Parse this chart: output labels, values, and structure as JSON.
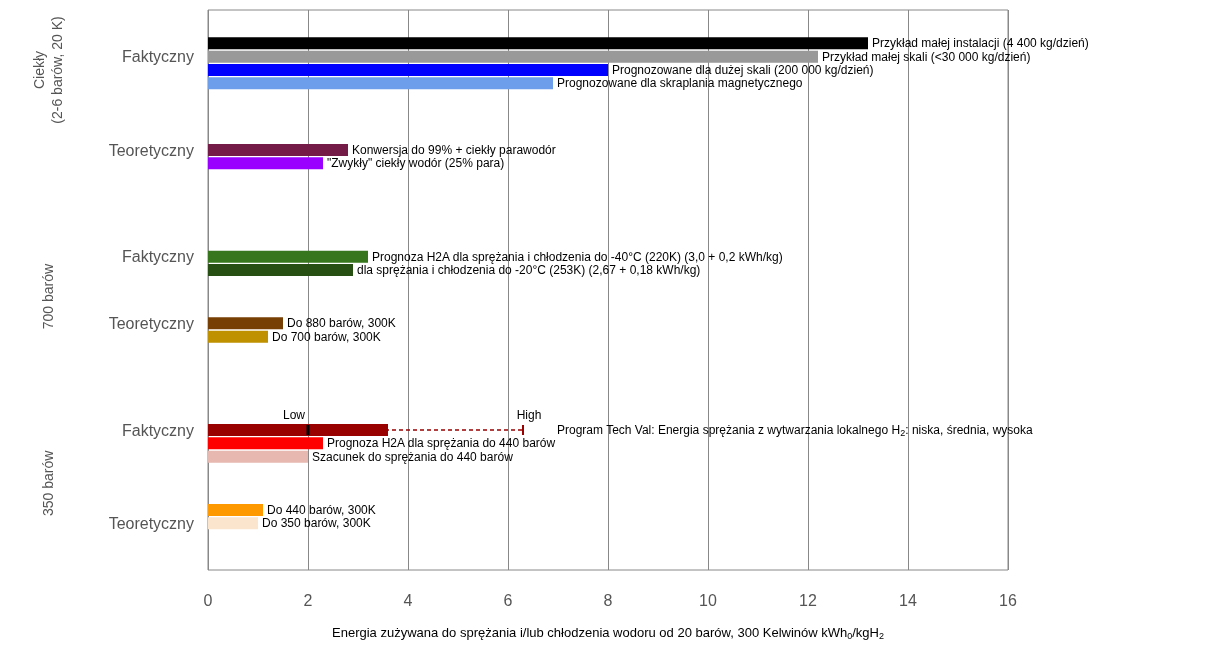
{
  "chart_data": {
    "type": "bar",
    "orientation": "horizontal",
    "xlabel": "Energia zużywana do sprężania i/lub chłodzenia wodoru od 20 barów, 300 Kelwinów kWh$_{0}$/kgH$_{2}$",
    "categories": [
      null,
      null,
      null,
      "Faktyczny",
      null,
      null,
      null,
      null,
      null,
      null,
      "Teoretyczny",
      null,
      null,
      null,
      null,
      null,
      null,
      null,
      "Faktyczny",
      null,
      null,
      null,
      null,
      "Teoretyczny",
      null,
      null,
      null,
      null,
      null,
      null,
      null,
      "Faktyczny",
      null,
      null,
      null,
      null,
      null,
      null,
      "Teoretyczny",
      null,
      null,
      null
    ],
    "xlim": [
      0,
      16
    ],
    "xticks": [
      0,
      2,
      4,
      6,
      8,
      10,
      12,
      14,
      16
    ],
    "grid": "x",
    "series": [
      {
        "name": "Przykład małej instalacji (4 400 kg/dzień)",
        "color": "#000000",
        "values": [
          null,
          null,
          13.2,
          null,
          null,
          null,
          null,
          null,
          null,
          null,
          null,
          null,
          null,
          null,
          null,
          null,
          null,
          null,
          null,
          null,
          null,
          null,
          null,
          null,
          null,
          null,
          null,
          null,
          null,
          null,
          null,
          null,
          null,
          null,
          null,
          null,
          null,
          null,
          null,
          null,
          null,
          null
        ]
      },
      {
        "name": "Przykład małej skali (<30 000 kg/dzień)",
        "color": "#999999",
        "values": [
          null,
          null,
          null,
          12.2,
          null,
          null,
          null,
          null,
          null,
          null,
          null,
          null,
          null,
          null,
          null,
          null,
          null,
          null,
          null,
          null,
          null,
          null,
          null,
          null,
          null,
          null,
          null,
          null,
          null,
          null,
          null,
          null,
          null,
          null,
          null,
          null,
          null,
          null,
          null,
          null,
          null,
          null
        ]
      },
      {
        "name": "Prognozowane dla dużej skali (200 000 kg/dzień)",
        "color": "#0000ff",
        "values": [
          null,
          null,
          null,
          null,
          8.0,
          null,
          null,
          null,
          null,
          null,
          null,
          null,
          null,
          null,
          null,
          null,
          null,
          null,
          null,
          null,
          null,
          null,
          null,
          null,
          null,
          null,
          null,
          null,
          null,
          null,
          null,
          null,
          null,
          null,
          null,
          null,
          null,
          null,
          null,
          null,
          null,
          null
        ]
      },
      {
        "name": "Prognozowane dla skraplania magnetycznego",
        "color": "#6d9eeb",
        "values": [
          null,
          null,
          null,
          null,
          null,
          6.9,
          null,
          null,
          null,
          null,
          null,
          null,
          null,
          null,
          null,
          null,
          null,
          null,
          null,
          null,
          null,
          null,
          null,
          null,
          null,
          null,
          null,
          null,
          null,
          null,
          null,
          null,
          null,
          null,
          null,
          null,
          null,
          null,
          null,
          null,
          null,
          null
        ]
      },
      {
        "name": "Konwersja do 99% + ciekły parawodór",
        "color": "#741b47",
        "values": [
          null,
          null,
          null,
          null,
          null,
          null,
          null,
          null,
          null,
          null,
          2.8,
          null,
          null,
          null,
          null,
          null,
          null,
          null,
          null,
          null,
          null,
          null,
          null,
          null,
          null,
          null,
          null,
          null,
          null,
          null,
          null,
          null,
          null,
          null,
          null,
          null,
          null,
          null,
          null,
          null,
          null,
          null
        ]
      },
      {
        "name": "\"Zwykły\" ciekły wodór (25% para)",
        "color": "#9900ff",
        "values": [
          null,
          null,
          null,
          null,
          null,
          null,
          null,
          null,
          null,
          null,
          null,
          2.3,
          null,
          null,
          null,
          null,
          null,
          null,
          null,
          null,
          null,
          null,
          null,
          null,
          null,
          null,
          null,
          null,
          null,
          null,
          null,
          null,
          null,
          null,
          null,
          null,
          null,
          null,
          null,
          null,
          null,
          null
        ]
      },
      {
        "name": "Prognoza H2A dla sprężania i chłodzenia do -40°C (220K) (3,0 + 0,2 kWh/kg)",
        "color": "#38761d",
        "values": [
          null,
          null,
          null,
          null,
          null,
          null,
          null,
          null,
          null,
          null,
          null,
          null,
          null,
          null,
          null,
          null,
          null,
          null,
          3.2,
          null,
          null,
          null,
          null,
          null,
          null,
          null,
          null,
          null,
          null,
          null,
          null,
          null,
          null,
          null,
          null,
          null,
          null,
          null,
          null,
          null,
          null,
          null
        ]
      },
      {
        "name": "dla sprężania i chłodzenia do -20°C (253K) (2,67 + 0,18 kWh/kg)",
        "color": "#274e13",
        "values": [
          null,
          null,
          null,
          null,
          null,
          null,
          null,
          null,
          null,
          null,
          null,
          null,
          null,
          null,
          null,
          null,
          null,
          null,
          null,
          2.9,
          null,
          null,
          null,
          null,
          null,
          null,
          null,
          null,
          null,
          null,
          null,
          null,
          null,
          null,
          null,
          null,
          null,
          null,
          null,
          null,
          null,
          null
        ]
      },
      {
        "name": "Do 880 barów, 300K",
        "color": "#783f04",
        "values": [
          null,
          null,
          null,
          null,
          null,
          null,
          null,
          null,
          null,
          null,
          null,
          null,
          null,
          null,
          null,
          null,
          null,
          null,
          null,
          null,
          null,
          null,
          null,
          1.5,
          null,
          null,
          null,
          null,
          null,
          null,
          null,
          null,
          null,
          null,
          null,
          null,
          null,
          null,
          null,
          null,
          null,
          null
        ]
      },
      {
        "name": "Do 700 barów, 300K",
        "color": "#bf9000",
        "values": [
          null,
          null,
          null,
          null,
          null,
          null,
          null,
          null,
          null,
          null,
          null,
          null,
          null,
          null,
          null,
          null,
          null,
          null,
          null,
          null,
          null,
          null,
          null,
          null,
          1.2,
          null,
          null,
          null,
          null,
          null,
          null,
          null,
          null,
          null,
          null,
          null,
          null,
          null,
          null,
          null,
          null,
          null
        ]
      },
      {
        "name": "Program Tech Val: Energia sprężania z wytwarzania lokalnego H$_{2}$: niska, średnia, wysoka",
        "color": "#990000",
        "values": [
          null,
          null,
          null,
          null,
          null,
          null,
          null,
          null,
          null,
          null,
          null,
          null,
          null,
          null,
          null,
          null,
          null,
          null,
          null,
          null,
          null,
          null,
          null,
          null,
          null,
          null,
          null,
          null,
          null,
          null,
          null,
          3.6,
          null,
          null,
          null,
          null,
          null,
          null,
          null,
          null,
          null,
          null
        ],
        "errors": [
          null,
          null,
          null,
          null,
          null,
          null,
          null,
          null,
          null,
          null,
          null,
          null,
          null,
          null,
          null,
          null,
          null,
          null,
          null,
          null,
          null,
          null,
          null,
          null,
          null,
          null,
          null,
          null,
          null,
          null,
          null,
          [
            2.0,
            6.3
          ],
          null,
          null,
          null,
          null,
          null,
          null,
          null,
          null,
          null,
          null
        ]
      },
      {
        "name": "Prognoza H2A dla sprężania do 440 barów",
        "color": "#ff0000",
        "values": [
          null,
          null,
          null,
          null,
          null,
          null,
          null,
          null,
          null,
          null,
          null,
          null,
          null,
          null,
          null,
          null,
          null,
          null,
          null,
          null,
          null,
          null,
          null,
          null,
          null,
          null,
          null,
          null,
          null,
          null,
          null,
          null,
          2.3,
          null,
          null,
          null,
          null,
          null,
          null,
          null,
          null,
          null
        ]
      },
      {
        "name": "Szacunek do sprężania do 440 barów",
        "color": "#e6b8af",
        "values": [
          null,
          null,
          null,
          null,
          null,
          null,
          null,
          null,
          null,
          null,
          null,
          null,
          null,
          null,
          null,
          null,
          null,
          null,
          null,
          null,
          null,
          null,
          null,
          null,
          null,
          null,
          null,
          null,
          null,
          null,
          null,
          null,
          null,
          2.0,
          null,
          null,
          null,
          null,
          null,
          null,
          null,
          null
        ]
      },
      {
        "name": "Do 440 barów, 300K",
        "color": "#ff9900",
        "values": [
          null,
          null,
          null,
          null,
          null,
          null,
          null,
          null,
          null,
          null,
          null,
          null,
          null,
          null,
          null,
          null,
          null,
          null,
          null,
          null,
          null,
          null,
          null,
          null,
          null,
          null,
          null,
          null,
          null,
          null,
          null,
          null,
          null,
          null,
          null,
          null,
          null,
          1.1,
          null,
          null,
          null,
          null
        ]
      },
      {
        "name": "Do 350 barów, 300K",
        "color": "#fce5cd",
        "values": [
          null,
          null,
          null,
          null,
          null,
          null,
          null,
          null,
          null,
          null,
          null,
          null,
          null,
          null,
          null,
          null,
          null,
          null,
          null,
          null,
          null,
          null,
          null,
          null,
          null,
          null,
          null,
          null,
          null,
          null,
          null,
          null,
          null,
          null,
          null,
          null,
          null,
          null,
          1.0,
          null,
          null,
          null
        ]
      }
    ],
    "annotations": [
      "Ciekły\n(2-6 barów, 20 K)",
      "700 barów",
      "350 barów",
      "Low",
      "High"
    ]
  }
}
